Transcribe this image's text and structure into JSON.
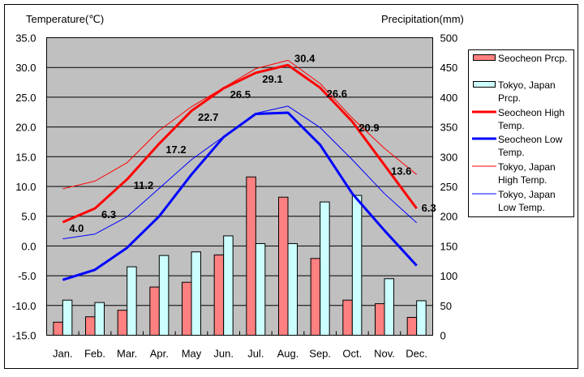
{
  "chart_data": {
    "type": "bar+line",
    "title": "",
    "ylabel_left": "Temperature(℃)",
    "ylabel_right": "Precipitation(mm)",
    "ylim_left": [
      -15,
      35
    ],
    "ylim_right": [
      0,
      500
    ],
    "left_ticks": [
      "35.0",
      "30.0",
      "25.0",
      "20.0",
      "15.0",
      "10.0",
      "5.0",
      "0.0",
      "-5.0",
      "-10.0",
      "-15.0"
    ],
    "right_ticks": [
      "500",
      "450",
      "400",
      "350",
      "300",
      "250",
      "200",
      "150",
      "100",
      "50",
      "0"
    ],
    "grid": true,
    "legend_position": "right",
    "categories": [
      "Jan.",
      "Feb.",
      "Mar.",
      "Apr.",
      "May",
      "Jun.",
      "Jul.",
      "Aug.",
      "Sep.",
      "Oct.",
      "Nov.",
      "Dec."
    ],
    "bar_series": [
      {
        "name": "Seocheon Prcp.",
        "color": "#ff8080",
        "values": [
          22,
          31,
          42,
          81,
          89,
          135,
          266,
          232,
          129,
          59,
          53,
          30
        ]
      },
      {
        "name": "Tokyo, Japan Prcp.",
        "color": "#ccffff",
        "values": [
          59,
          55,
          115,
          134,
          140,
          167,
          154,
          154,
          224,
          235,
          95,
          58
        ]
      }
    ],
    "line_series": [
      {
        "name": "Seocheon High Temp.",
        "color": "#ff0000",
        "thick": true,
        "labeled": true,
        "values": [
          4.0,
          6.3,
          11.2,
          17.2,
          22.7,
          26.5,
          29.1,
          30.4,
          26.6,
          20.9,
          13.6,
          6.3
        ]
      },
      {
        "name": "Seocheon Low Temp.",
        "color": "#0000ff",
        "thick": true,
        "labeled": false,
        "values": [
          -5.7,
          -4.0,
          -0.3,
          5.0,
          12.0,
          18.3,
          22.2,
          22.4,
          17.0,
          8.8,
          2.6,
          -3.3
        ]
      },
      {
        "name": "Tokyo, Japan High Temp.",
        "color": "#ff0000",
        "thick": false,
        "labeled": false,
        "values": [
          9.6,
          10.9,
          14.0,
          19.4,
          23.4,
          26.6,
          29.8,
          31.2,
          27.3,
          21.5,
          16.4,
          12.0
        ]
      },
      {
        "name": "Tokyo, Japan Low Temp.",
        "color": "#0000ff",
        "thick": false,
        "labeled": false,
        "values": [
          1.2,
          2.0,
          4.9,
          9.7,
          14.5,
          18.4,
          22.3,
          23.5,
          19.9,
          14.5,
          8.8,
          3.9
        ]
      }
    ],
    "legend": [
      {
        "label1": "Seocheon Prcp.",
        "label2": ""
      },
      {
        "label1": "Tokyo, Japan",
        "label2": "Prcp."
      },
      {
        "label1": "Seocheon High",
        "label2": "Temp."
      },
      {
        "label1": "Seocheon Low",
        "label2": "Temp."
      },
      {
        "label1": "Tokyo, Japan",
        "label2": "High Temp."
      },
      {
        "label1": "Tokyo, Japan",
        "label2": "Low Temp."
      }
    ]
  }
}
